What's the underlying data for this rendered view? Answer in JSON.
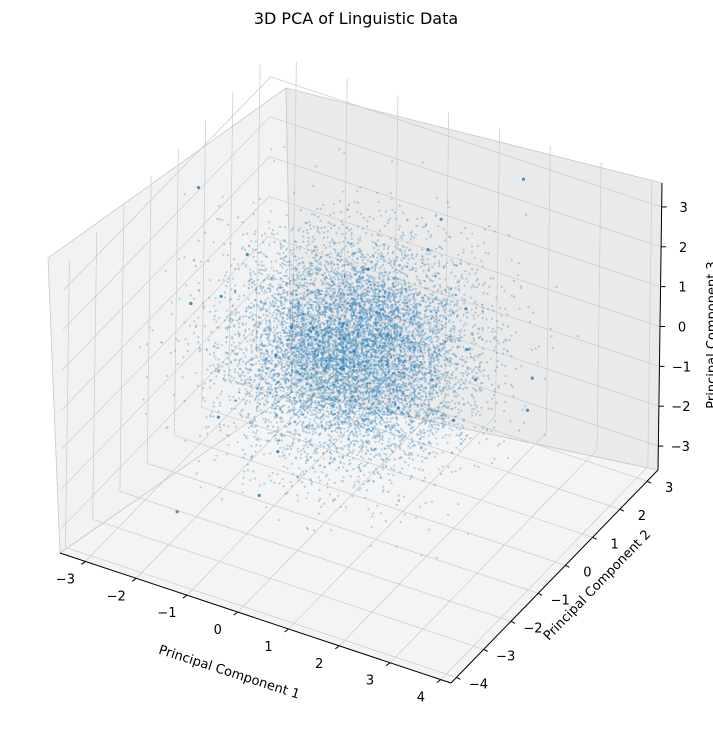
{
  "chart_data": {
    "type": "scatter",
    "projection": "3d",
    "title": "3D PCA of Linguistic Data",
    "xlabel": "Principal Component 1",
    "ylabel": "Principal Component 2",
    "zlabel": "Principal Component 3",
    "xlim": [
      -3.5,
      4.2
    ],
    "ylim": [
      -4.2,
      3.4
    ],
    "zlim": [
      -3.6,
      3.6
    ],
    "xticks": [
      "−3",
      "−2",
      "−1",
      "0",
      "1",
      "2",
      "3",
      "4"
    ],
    "yticks": [
      "−4",
      "−3",
      "−2",
      "−1",
      "0",
      "1",
      "2",
      "3"
    ],
    "zticks": [
      "−3",
      "−2",
      "−1",
      "0",
      "1",
      "2",
      "3"
    ],
    "grid": true,
    "series": [
      {
        "color": "#1f77b4",
        "marker_size": 1,
        "alpha": 0.3,
        "distribution": "dense cloud centered near the origin, spread ≈ ±3 on each principal component",
        "points": [
          [
            0.0,
            0.0,
            0.0
          ],
          [
            0.5,
            0.3,
            0.4
          ],
          [
            -0.6,
            -0.4,
            0.6
          ],
          [
            1.2,
            -0.6,
            -0.5
          ],
          [
            -1.5,
            0.5,
            -0.4
          ],
          [
            2.0,
            0.4,
            0.6
          ],
          [
            -2.2,
            -0.8,
            1.0
          ],
          [
            1.6,
            1.5,
            -1.1
          ],
          [
            -0.8,
            2.0,
            0.3
          ],
          [
            0.9,
            -2.1,
            1.4
          ],
          [
            -1.8,
            -1.6,
            -1.3
          ],
          [
            2.6,
            -1.2,
            0.2
          ],
          [
            -2.7,
            1.1,
            0.5
          ],
          [
            0.3,
            2.6,
            1.6
          ],
          [
            -0.4,
            -2.7,
            -1.9
          ],
          [
            1.0,
            0.8,
            2.4
          ],
          [
            -1.1,
            -0.7,
            -2.5
          ],
          [
            3.1,
            0.6,
            -0.6
          ],
          [
            -3.0,
            -0.4,
            0.2
          ],
          [
            0.6,
            3.0,
            -0.8
          ],
          [
            3.5,
            0.0,
            0.8
          ],
          [
            -3.2,
            0.2,
            2.6
          ],
          [
            0.2,
            -3.3,
            2.3
          ],
          [
            1.8,
            2.8,
            3.1
          ],
          [
            -1.9,
            -2.9,
            -2.8
          ]
        ]
      }
    ]
  }
}
